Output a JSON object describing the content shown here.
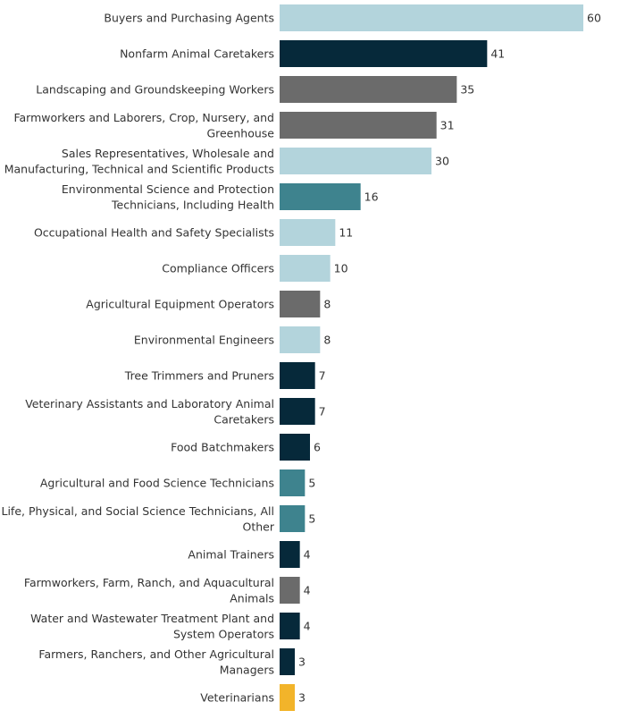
{
  "chart_data": {
    "type": "bar",
    "orientation": "horizontal",
    "title": "",
    "xlabel": "",
    "ylabel": "",
    "xlim": [
      0,
      60
    ],
    "grid": false,
    "legend": "none",
    "categories": [
      "Buyers and Purchasing Agents",
      "Nonfarm Animal Caretakers",
      "Landscaping and Groundskeeping Workers",
      "Farmworkers and Laborers, Crop, Nursery, and Greenhouse",
      "Sales Representatives, Wholesale and Manufacturing, Technical and Scientific Products",
      "Environmental Science and Protection Technicians, Including Health",
      "Occupational Health and Safety Specialists",
      "Compliance Officers",
      "Agricultural Equipment Operators",
      "Environmental Engineers",
      "Tree Trimmers and Pruners",
      "Veterinary Assistants and Laboratory Animal Caretakers",
      "Food Batchmakers",
      "Agricultural and Food Science Technicians",
      "Life, Physical, and Social Science Technicians, All Other",
      "Animal Trainers",
      "Farmworkers, Farm, Ranch, and Aquacultural Animals",
      "Water and Wastewater Treatment Plant and System Operators",
      "Farmers, Ranchers, and Other Agricultural Managers",
      "Veterinarians"
    ],
    "label_lines": [
      [
        "Buyers and Purchasing Agents"
      ],
      [
        "Nonfarm Animal Caretakers"
      ],
      [
        "Landscaping and Groundskeeping Workers"
      ],
      [
        "Farmworkers and Laborers, Crop, Nursery, and",
        "Greenhouse"
      ],
      [
        "Sales Representatives, Wholesale and",
        "Manufacturing, Technical and Scientific Products"
      ],
      [
        "Environmental Science and Protection",
        "Technicians, Including Health"
      ],
      [
        "Occupational Health and Safety Specialists"
      ],
      [
        "Compliance Officers"
      ],
      [
        "Agricultural Equipment Operators"
      ],
      [
        "Environmental Engineers"
      ],
      [
        "Tree Trimmers and Pruners"
      ],
      [
        "Veterinary Assistants and Laboratory Animal",
        "Caretakers"
      ],
      [
        "Food Batchmakers"
      ],
      [
        "Agricultural and Food Science Technicians"
      ],
      [
        "Life, Physical, and Social Science Technicians, All",
        "Other"
      ],
      [
        "Animal Trainers"
      ],
      [
        "Farmworkers, Farm, Ranch, and Aquacultural",
        "Animals"
      ],
      [
        "Water and Wastewater Treatment Plant and",
        "System Operators"
      ],
      [
        "Farmers, Ranchers, and Other Agricultural",
        "Managers"
      ],
      [
        "Veterinarians"
      ]
    ],
    "values": [
      60,
      41,
      35,
      31,
      30,
      16,
      11,
      10,
      8,
      8,
      7,
      7,
      6,
      5,
      5,
      4,
      4,
      4,
      3,
      3
    ],
    "bar_colors": [
      "#b3d4dc",
      "#06293a",
      "#6b6b6b",
      "#6b6b6b",
      "#b3d4dc",
      "#3e838e",
      "#b3d4dc",
      "#b3d4dc",
      "#6b6b6b",
      "#b3d4dc",
      "#06293a",
      "#06293a",
      "#06293a",
      "#3e838e",
      "#3e838e",
      "#06293a",
      "#6b6b6b",
      "#06293a",
      "#06293a",
      "#f2b42a"
    ]
  }
}
